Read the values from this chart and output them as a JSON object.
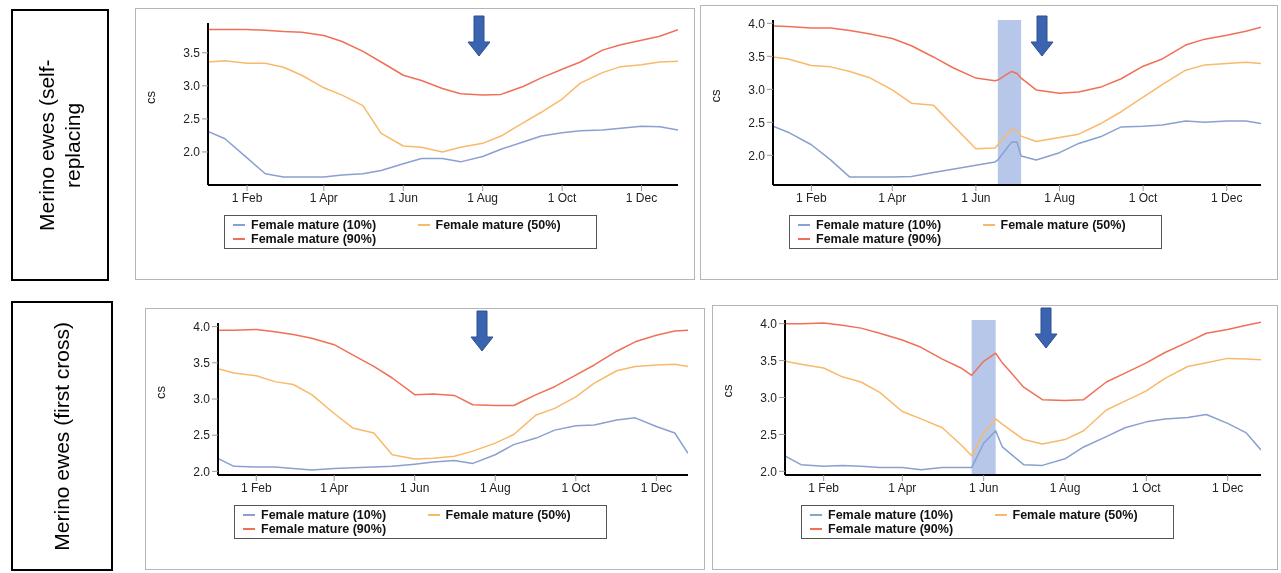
{
  "chart_data": [
    {
      "type": "line",
      "annotations": [
        "Merino ewes (self-replacing"
      ],
      "ylabel": "cs",
      "legend": "bottom",
      "x": [
        "--01-02",
        "--01-15",
        "--02-01",
        "--02-15",
        "--03-01",
        "--03-15",
        "--04-01",
        "--04-15",
        "--05-01",
        "--05-15",
        "--06-01",
        "--06-15",
        "--07-01",
        "--07-15",
        "--08-01",
        "--08-15",
        "--09-01",
        "--09-15",
        "--10-01",
        "--10-15",
        "--11-01",
        "--11-15",
        "--12-01",
        "--12-15",
        "--12-29"
      ],
      "xlim": [
        "--01-02",
        "--12-29"
      ],
      "xticks": [
        {
          "value": "--02-01",
          "label": "1 Feb"
        },
        {
          "value": "--04-01",
          "label": "1 Apr"
        },
        {
          "value": "--06-01",
          "label": "1 Jun"
        },
        {
          "value": "--08-01",
          "label": "1 Aug"
        },
        {
          "value": "--10-01",
          "label": "1 Oct"
        },
        {
          "value": "--12-01",
          "label": "1 Dec"
        }
      ],
      "ylim": [
        1.5,
        3.95
      ],
      "yticks": [
        {
          "value": 2,
          "label": "2.0"
        },
        {
          "value": 2.5,
          "label": "2.5"
        },
        {
          "value": 3,
          "label": "3.0"
        },
        {
          "value": 3.5,
          "label": "3.5"
        }
      ],
      "series": [
        {
          "name": "Female mature (10%)",
          "color": "#8aa0d0",
          "values": [
            2.31,
            2.2,
            1.91,
            1.67,
            1.62,
            1.62,
            1.62,
            1.65,
            1.67,
            1.72,
            1.82,
            1.9,
            1.9,
            1.85,
            1.93,
            2.04,
            2.15,
            2.24,
            2.29,
            2.32,
            2.33,
            2.36,
            2.39,
            2.38,
            2.33
          ]
        },
        {
          "name": "Female mature (50%)",
          "color": "#f9b96a",
          "values": [
            3.36,
            3.38,
            3.34,
            3.34,
            3.28,
            3.16,
            2.97,
            2.86,
            2.7,
            2.28,
            2.09,
            2.07,
            2.0,
            2.07,
            2.13,
            2.24,
            2.44,
            2.6,
            2.8,
            3.04,
            3.2,
            3.29,
            3.32,
            3.36,
            3.37
          ]
        },
        {
          "name": "Female mature (90%)",
          "color": "#f07057",
          "values": [
            3.85,
            3.85,
            3.85,
            3.84,
            3.82,
            3.81,
            3.76,
            3.67,
            3.52,
            3.36,
            3.16,
            3.08,
            2.96,
            2.88,
            2.86,
            2.87,
            2.99,
            3.12,
            3.25,
            3.36,
            3.54,
            3.62,
            3.69,
            3.75,
            3.85
          ]
        }
      ]
    },
    {
      "type": "line",
      "ylabel": "cs",
      "legend": "bottom",
      "x": [
        "--01-04",
        "--01-15",
        "--02-01",
        "--02-15",
        "--03-01",
        "--03-15",
        "--04-01",
        "--04-15",
        "--05-01",
        "--05-15",
        "--06-01",
        "--06-15",
        "--06-17",
        "--06-27",
        "--07-01",
        "--07-04",
        "--07-15",
        "--08-01",
        "--08-15",
        "--09-01",
        "--09-15",
        "--10-01",
        "--10-15",
        "--11-01",
        "--11-15",
        "--12-01",
        "--12-15",
        "--12-26"
      ],
      "xlim": [
        "--01-04",
        "--12-26"
      ],
      "xticks": [
        {
          "value": "--02-01",
          "label": "1 Feb"
        },
        {
          "value": "--04-01",
          "label": "1 Apr"
        },
        {
          "value": "--06-01",
          "label": "1 Jun"
        },
        {
          "value": "--08-01",
          "label": "1 Aug"
        },
        {
          "value": "--10-01",
          "label": "1 Oct"
        },
        {
          "value": "--12-01",
          "label": "1 Dec"
        }
      ],
      "ylim": [
        1.55,
        4.05
      ],
      "yticks": [
        {
          "value": 2,
          "label": "2.0"
        },
        {
          "value": 2.5,
          "label": "2.5"
        },
        {
          "value": 3,
          "label": "3.0"
        },
        {
          "value": 3.5,
          "label": "3.5"
        },
        {
          "value": 4,
          "label": "4.0"
        }
      ],
      "bands": [
        {
          "axis": "x",
          "from": "--06-17",
          "to": "--07-04",
          "color": "#a9bde6"
        }
      ],
      "series": [
        {
          "name": "Female mature (10%)",
          "color": "#8aa0d0",
          "values": [
            2.44,
            2.35,
            2.16,
            1.93,
            1.67,
            1.67,
            1.67,
            1.68,
            1.74,
            1.79,
            1.85,
            1.9,
            1.93,
            2.2,
            2.2,
            1.99,
            1.93,
            2.04,
            2.18,
            2.29,
            2.43,
            2.44,
            2.46,
            2.52,
            2.5,
            2.52,
            2.52,
            2.48
          ]
        },
        {
          "name": "Female mature (50%)",
          "color": "#f9b96a",
          "values": [
            3.49,
            3.46,
            3.36,
            3.34,
            3.27,
            3.18,
            2.99,
            2.79,
            2.76,
            2.46,
            2.1,
            2.11,
            2.16,
            2.39,
            2.37,
            2.29,
            2.21,
            2.27,
            2.32,
            2.49,
            2.66,
            2.88,
            3.07,
            3.29,
            3.37,
            3.39,
            3.41,
            3.39
          ]
        },
        {
          "name": "Female mature (90%)",
          "color": "#f07057",
          "values": [
            3.96,
            3.95,
            3.93,
            3.93,
            3.89,
            3.84,
            3.77,
            3.66,
            3.49,
            3.33,
            3.17,
            3.13,
            3.14,
            3.27,
            3.24,
            3.17,
            2.99,
            2.94,
            2.96,
            3.04,
            3.16,
            3.35,
            3.46,
            3.67,
            3.76,
            3.82,
            3.88,
            3.94
          ]
        }
      ]
    },
    {
      "type": "line",
      "annotations": [
        "Merino ewes (first cross)"
      ],
      "ylabel": "cs",
      "legend": "bottom",
      "x": [
        "--01-03",
        "--01-15",
        "--02-01",
        "--02-15",
        "--03-01",
        "--03-15",
        "--04-01",
        "--04-15",
        "--05-01",
        "--05-15",
        "--06-01",
        "--06-15",
        "--07-01",
        "--07-15",
        "--08-01",
        "--08-15",
        "--09-01",
        "--09-15",
        "--10-01",
        "--10-15",
        "--11-01",
        "--11-15",
        "--12-01",
        "--12-15",
        "--12-25"
      ],
      "xlim": [
        "--01-03",
        "--12-25"
      ],
      "xticks": [
        {
          "value": "--02-01",
          "label": "1 Feb"
        },
        {
          "value": "--04-01",
          "label": "1 Apr"
        },
        {
          "value": "--06-01",
          "label": "1 Jun"
        },
        {
          "value": "--08-01",
          "label": "1 Aug"
        },
        {
          "value": "--10-01",
          "label": "1 Oct"
        },
        {
          "value": "--12-01",
          "label": "1 Dec"
        }
      ],
      "ylim": [
        1.95,
        4.05
      ],
      "yticks": [
        {
          "value": 2,
          "label": "2.0"
        },
        {
          "value": 2.5,
          "label": "2.5"
        },
        {
          "value": 3,
          "label": "3.0"
        },
        {
          "value": 3.5,
          "label": "3.5"
        },
        {
          "value": 4,
          "label": "4.0"
        }
      ],
      "series": [
        {
          "name": "Female mature (10%)",
          "color": "#8aa0d0",
          "values": [
            2.18,
            2.07,
            2.06,
            2.06,
            2.04,
            2.02,
            2.04,
            2.05,
            2.06,
            2.07,
            2.1,
            2.13,
            2.15,
            2.11,
            2.23,
            2.37,
            2.46,
            2.57,
            2.63,
            2.64,
            2.71,
            2.74,
            2.62,
            2.53,
            2.25
          ]
        },
        {
          "name": "Female mature (50%)",
          "color": "#f9b96a",
          "values": [
            3.42,
            3.36,
            3.32,
            3.24,
            3.2,
            3.06,
            2.8,
            2.6,
            2.53,
            2.23,
            2.17,
            2.18,
            2.21,
            2.28,
            2.39,
            2.51,
            2.78,
            2.87,
            3.03,
            3.22,
            3.39,
            3.45,
            3.47,
            3.48,
            3.45
          ]
        },
        {
          "name": "Female mature (90%)",
          "color": "#f07057",
          "values": [
            3.95,
            3.95,
            3.96,
            3.93,
            3.89,
            3.84,
            3.75,
            3.61,
            3.45,
            3.29,
            3.06,
            3.07,
            3.05,
            2.92,
            2.91,
            2.91,
            3.06,
            3.17,
            3.33,
            3.47,
            3.66,
            3.79,
            3.88,
            3.94,
            3.95
          ]
        }
      ]
    },
    {
      "type": "line",
      "ylabel": "cs",
      "legend": "bottom",
      "x": [
        "--01-03",
        "--01-15",
        "--02-01",
        "--02-15",
        "--03-01",
        "--03-15",
        "--04-01",
        "--04-15",
        "--05-01",
        "--05-15",
        "--05-23",
        "--06-01",
        "--06-10",
        "--06-15",
        "--07-01",
        "--07-15",
        "--08-01",
        "--08-15",
        "--09-01",
        "--09-15",
        "--10-01",
        "--10-15",
        "--11-01",
        "--11-15",
        "--12-01",
        "--12-15",
        "--12-26"
      ],
      "xlim": [
        "--01-03",
        "--12-26"
      ],
      "xticks": [
        {
          "value": "--02-01",
          "label": "1 Feb"
        },
        {
          "value": "--04-01",
          "label": "1 Apr"
        },
        {
          "value": "--06-01",
          "label": "1 Jun"
        },
        {
          "value": "--08-01",
          "label": "1 Aug"
        },
        {
          "value": "--10-01",
          "label": "1 Oct"
        },
        {
          "value": "--12-01",
          "label": "1 Dec"
        }
      ],
      "ylim": [
        1.95,
        4.05
      ],
      "yticks": [
        {
          "value": 2,
          "label": "2.0"
        },
        {
          "value": 2.5,
          "label": "2.5"
        },
        {
          "value": 3,
          "label": "3.0"
        },
        {
          "value": 3.5,
          "label": "3.5"
        },
        {
          "value": 4,
          "label": "4.0"
        }
      ],
      "bands": [
        {
          "axis": "x",
          "from": "--05-23",
          "to": "--06-10",
          "color": "#a9bde6"
        }
      ],
      "series": [
        {
          "name": "Female mature (10%)",
          "color": "#8aa0d0",
          "values": [
            2.21,
            2.09,
            2.07,
            2.08,
            2.07,
            2.05,
            2.05,
            2.02,
            2.05,
            2.05,
            2.05,
            2.38,
            2.55,
            2.33,
            2.09,
            2.08,
            2.17,
            2.33,
            2.47,
            2.59,
            2.67,
            2.71,
            2.73,
            2.77,
            2.65,
            2.52,
            2.29
          ]
        },
        {
          "name": "Female mature (50%)",
          "color": "#f9b96a",
          "values": [
            3.49,
            3.45,
            3.4,
            3.28,
            3.21,
            3.07,
            2.81,
            2.71,
            2.59,
            2.36,
            2.21,
            2.52,
            2.71,
            2.64,
            2.43,
            2.37,
            2.43,
            2.55,
            2.83,
            2.95,
            3.09,
            3.26,
            3.42,
            3.47,
            3.53,
            3.52,
            3.51
          ]
        },
        {
          "name": "Female mature (90%)",
          "color": "#f07057",
          "values": [
            4.0,
            4.0,
            4.01,
            3.98,
            3.94,
            3.87,
            3.78,
            3.68,
            3.52,
            3.4,
            3.3,
            3.49,
            3.6,
            3.47,
            3.14,
            2.97,
            2.96,
            2.97,
            3.21,
            3.33,
            3.47,
            3.61,
            3.75,
            3.87,
            3.92,
            3.98,
            4.02
          ]
        }
      ]
    }
  ]
}
